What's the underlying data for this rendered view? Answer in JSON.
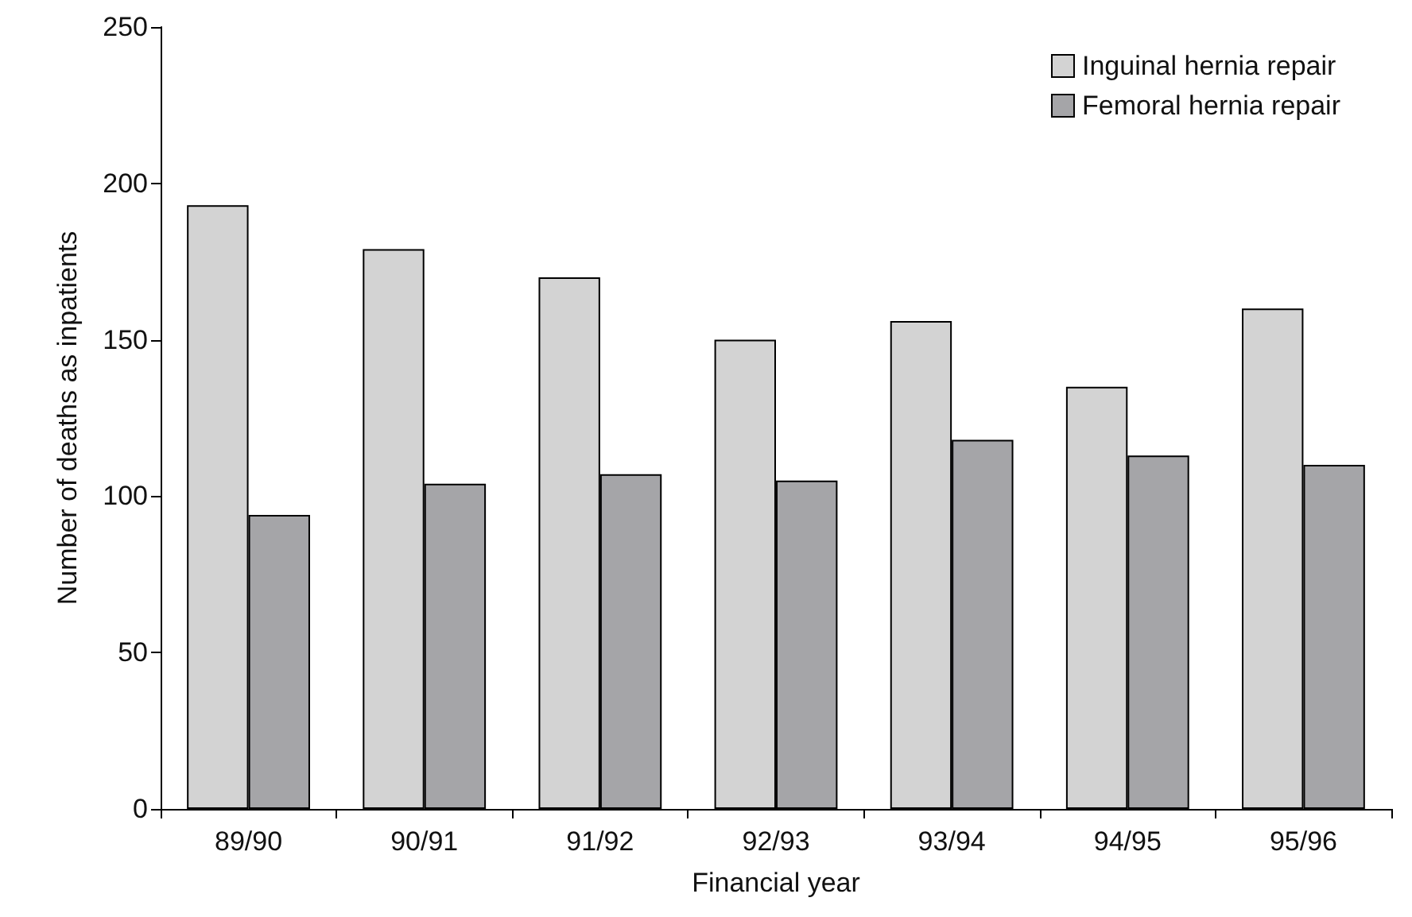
{
  "chart_data": {
    "type": "bar",
    "xlabel": "Financial year",
    "ylabel": "Number of deaths as inpatients",
    "categories": [
      "89/90",
      "90/91",
      "91/92",
      "92/93",
      "93/94",
      "94/95",
      "95/96"
    ],
    "series": [
      {
        "name": "Inguinal hernia repair",
        "color": "#d3d3d3",
        "values": [
          193,
          179,
          170,
          150,
          156,
          135,
          160
        ]
      },
      {
        "name": "Femoral hernia repair",
        "color": "#a5a5a8",
        "values": [
          94,
          104,
          107,
          105,
          118,
          113,
          110
        ]
      }
    ],
    "ylim": [
      0,
      250
    ],
    "yticks": [
      0,
      50,
      100,
      150,
      200,
      250
    ],
    "grid": false,
    "legend": "top right"
  }
}
